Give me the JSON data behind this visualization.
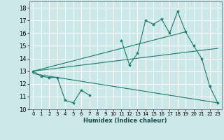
{
  "xlabel": "Humidex (Indice chaleur)",
  "bg_color": "#cce8e8",
  "grid_color": "#ffffff",
  "line_color": "#1a7a6e",
  "xlim": [
    -0.5,
    23.5
  ],
  "ylim": [
    10,
    18.5
  ],
  "yticks": [
    10,
    11,
    12,
    13,
    14,
    15,
    16,
    17,
    18
  ],
  "xticks": [
    0,
    1,
    2,
    3,
    4,
    5,
    6,
    7,
    8,
    9,
    10,
    11,
    12,
    13,
    14,
    15,
    16,
    17,
    18,
    19,
    20,
    21,
    22,
    23
  ],
  "data_line": [
    13.0,
    12.6,
    12.5,
    12.5,
    10.7,
    10.5,
    11.5,
    11.1,
    null,
    null,
    null,
    15.4,
    13.5,
    14.4,
    17.0,
    16.7,
    17.1,
    16.0,
    17.7,
    16.1,
    15.0,
    14.0,
    11.8,
    10.5
  ],
  "trend_line1_x": [
    0,
    19
  ],
  "trend_line1_y": [
    13.0,
    16.1
  ],
  "trend_line2_x": [
    0,
    23
  ],
  "trend_line2_y": [
    13.0,
    14.8
  ],
  "trend_line3_x": [
    0,
    23
  ],
  "trend_line3_y": [
    12.8,
    10.5
  ]
}
